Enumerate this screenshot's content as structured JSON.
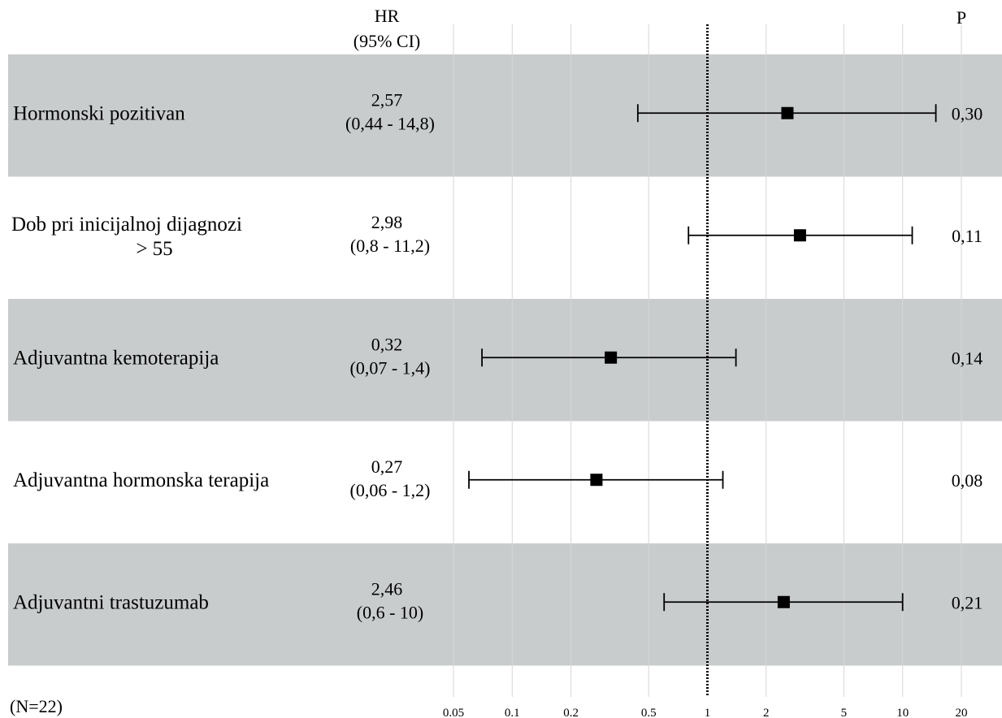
{
  "header": {
    "hr_label": "HR",
    "ci_label": "(95% CI)",
    "p_label": "P"
  },
  "footer": {
    "n_label": "(N=22)"
  },
  "chart_data": {
    "type": "forest",
    "x_scale": "log",
    "xlim": [
      0.05,
      20
    ],
    "x_ticks": [
      0.05,
      0.1,
      0.2,
      0.5,
      1,
      2,
      5,
      10,
      20
    ],
    "x_tick_labels": [
      "0.05",
      "0.1",
      "0.2",
      "0.5",
      "1",
      "2",
      "5",
      "10",
      "20"
    ],
    "reference_line": 1,
    "grid": true,
    "row_shading": "alternating grey",
    "rows": [
      {
        "label_lines": [
          "Hormonski pozitivan"
        ],
        "hr": 2.57,
        "ci_low": 0.44,
        "ci_high": 14.8,
        "hr_text": "2,57",
        "ci_text": "(0,44 - 14,8)",
        "p_text": "0,30"
      },
      {
        "label_lines": [
          "Dob pri inicijalnoj dijagnozi",
          "> 55"
        ],
        "hr": 2.98,
        "ci_low": 0.8,
        "ci_high": 11.2,
        "hr_text": "2,98",
        "ci_text": "(0,8 - 11,2)",
        "p_text": "0,11"
      },
      {
        "label_lines": [
          "Adjuvantna kemoterapija"
        ],
        "hr": 0.32,
        "ci_low": 0.07,
        "ci_high": 1.4,
        "hr_text": "0,32",
        "ci_text": "(0,07 - 1,4)",
        "p_text": "0,14"
      },
      {
        "label_lines": [
          "Adjuvantna hormonska terapija"
        ],
        "hr": 0.27,
        "ci_low": 0.06,
        "ci_high": 1.2,
        "hr_text": "0,27",
        "ci_text": "(0,06 - 1,2)",
        "p_text": "0,08"
      },
      {
        "label_lines": [
          "Adjuvantni trastuzumab"
        ],
        "hr": 2.46,
        "ci_low": 0.6,
        "ci_high": 10,
        "hr_text": "2,46",
        "ci_text": "(0,6 - 10)",
        "p_text": "0,21"
      }
    ],
    "colors": {
      "row_shade": "#c9cccd",
      "grid": "#d6d6d6",
      "marker": "#000000",
      "line": "#000000"
    }
  }
}
